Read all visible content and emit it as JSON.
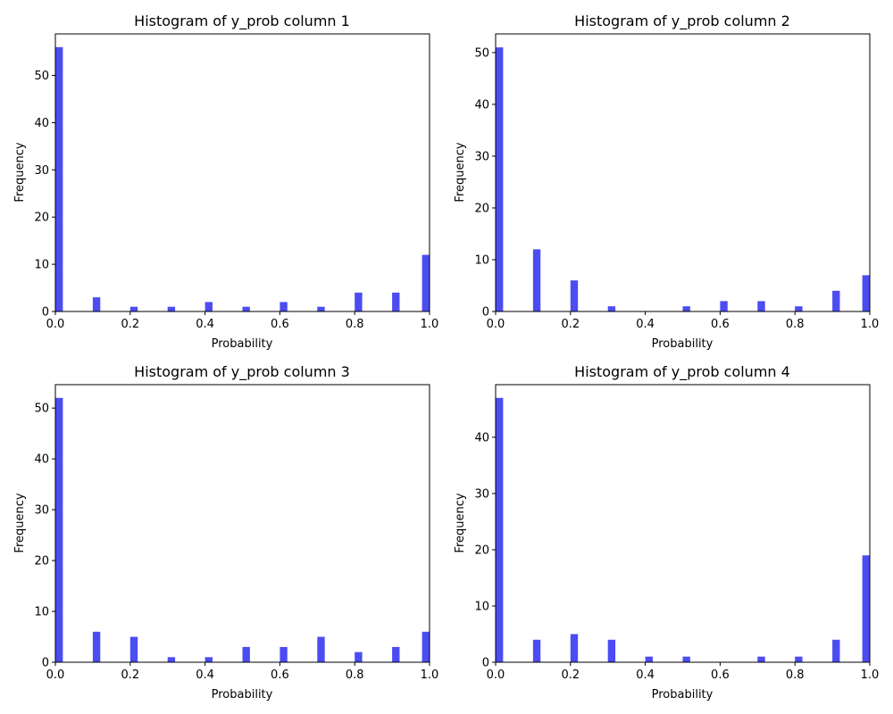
{
  "figure": {
    "background": "#ffffff",
    "bar_color": "#0000ee",
    "bar_opacity": 0.7
  },
  "chart_data": [
    {
      "type": "bar",
      "title": "Histogram of y_prob column 1",
      "xlabel": "Probability",
      "ylabel": "Frequency",
      "xlim": [
        0,
        1
      ],
      "ylim": [
        0,
        58.8
      ],
      "xticks": [
        "0.0",
        "0.2",
        "0.4",
        "0.6",
        "0.8",
        "1.0"
      ],
      "yticks": [
        "0",
        "10",
        "20",
        "30",
        "40",
        "50"
      ],
      "bar_width": 0.02,
      "x": [
        0.0,
        0.1,
        0.2,
        0.3,
        0.4,
        0.5,
        0.6,
        0.7,
        0.8,
        0.9,
        0.98
      ],
      "values": [
        56,
        3,
        1,
        1,
        2,
        1,
        2,
        1,
        4,
        4,
        12
      ]
    },
    {
      "type": "bar",
      "title": "Histogram of y_prob column 2",
      "xlabel": "Probability",
      "ylabel": "Frequency",
      "xlim": [
        0,
        1
      ],
      "ylim": [
        0,
        53.6
      ],
      "xticks": [
        "0.0",
        "0.2",
        "0.4",
        "0.6",
        "0.8",
        "1.0"
      ],
      "yticks": [
        "0",
        "10",
        "20",
        "30",
        "40",
        "50"
      ],
      "bar_width": 0.02,
      "x": [
        0.0,
        0.1,
        0.2,
        0.3,
        0.5,
        0.6,
        0.7,
        0.8,
        0.9,
        0.98
      ],
      "values": [
        51,
        12,
        6,
        1,
        1,
        2,
        2,
        1,
        4,
        7
      ]
    },
    {
      "type": "bar",
      "title": "Histogram of y_prob column 3",
      "xlabel": "Probability",
      "ylabel": "Frequency",
      "xlim": [
        0,
        1
      ],
      "ylim": [
        0,
        54.6
      ],
      "xticks": [
        "0.0",
        "0.2",
        "0.4",
        "0.6",
        "0.8",
        "1.0"
      ],
      "yticks": [
        "0",
        "10",
        "20",
        "30",
        "40",
        "50"
      ],
      "bar_width": 0.02,
      "x": [
        0.0,
        0.1,
        0.2,
        0.3,
        0.4,
        0.5,
        0.6,
        0.7,
        0.8,
        0.9,
        0.98
      ],
      "values": [
        52,
        6,
        5,
        1,
        1,
        3,
        3,
        5,
        2,
        3,
        6
      ]
    },
    {
      "type": "bar",
      "title": "Histogram of y_prob column 4",
      "xlabel": "Probability",
      "ylabel": "Frequency",
      "xlim": [
        0,
        1
      ],
      "ylim": [
        0,
        49.35
      ],
      "xticks": [
        "0.0",
        "0.2",
        "0.4",
        "0.6",
        "0.8",
        "1.0"
      ],
      "yticks": [
        "0",
        "10",
        "20",
        "30",
        "40"
      ],
      "bar_width": 0.02,
      "x": [
        0.0,
        0.1,
        0.2,
        0.3,
        0.4,
        0.5,
        0.7,
        0.8,
        0.9,
        0.98
      ],
      "values": [
        47,
        4,
        5,
        4,
        1,
        1,
        1,
        1,
        4,
        19
      ]
    }
  ]
}
